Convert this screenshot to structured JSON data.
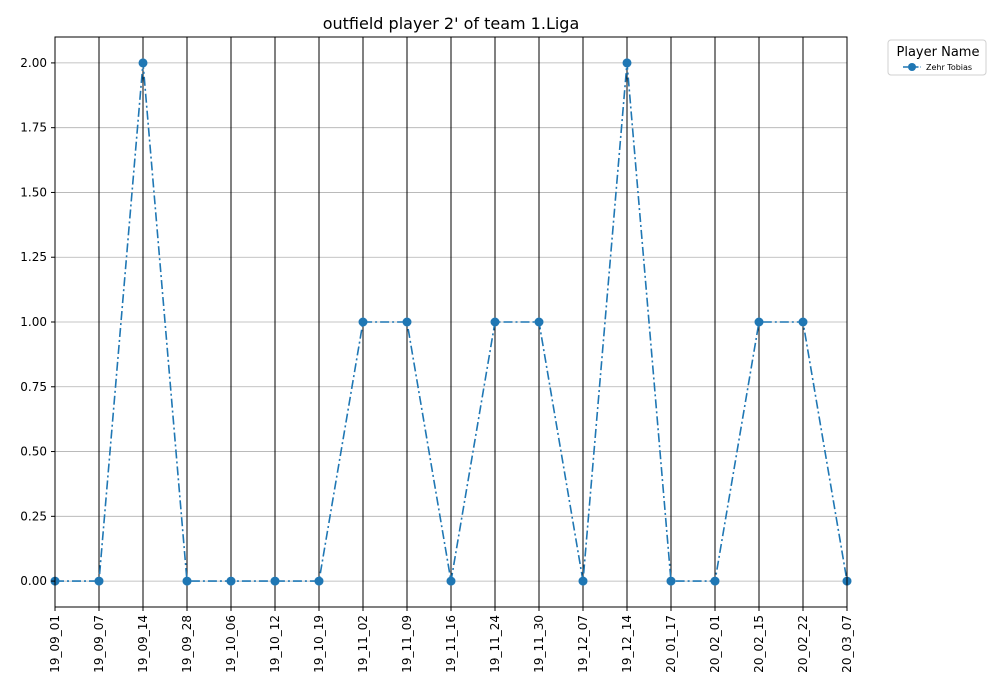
{
  "chart_data": {
    "type": "line",
    "title": "outfield player 2' of team 1.Liga",
    "xlabel": "",
    "ylabel": "",
    "x": [
      "19_09_01",
      "19_09_07",
      "19_09_14",
      "19_09_28",
      "19_10_06",
      "19_10_12",
      "19_10_19",
      "19_11_02",
      "19_11_09",
      "19_11_16",
      "19_11_24",
      "19_11_30",
      "19_12_07",
      "19_12_14",
      "20_01_17",
      "20_02_01",
      "20_02_15",
      "20_02_22",
      "20_03_07"
    ],
    "series": [
      {
        "name": "Zehr Tobias",
        "values": [
          0,
          0,
          2,
          0,
          0,
          0,
          0,
          1,
          1,
          0,
          1,
          1,
          0,
          2,
          0,
          0,
          1,
          1,
          0
        ],
        "color": "#1f77b4",
        "line_style": "dash-dot",
        "marker": "circle"
      }
    ],
    "ylim": [
      -0.1,
      2.1
    ],
    "yticks": [
      "0.00",
      "0.25",
      "0.50",
      "0.75",
      "1.00",
      "1.25",
      "1.50",
      "1.75",
      "2.00"
    ],
    "grid": {
      "horizontal": true,
      "horizontal_color": "#b0b0b0",
      "vertical": true,
      "vertical_color": "#000000"
    },
    "legend": {
      "title": "Player Name",
      "placement": "outside-top-right"
    }
  }
}
